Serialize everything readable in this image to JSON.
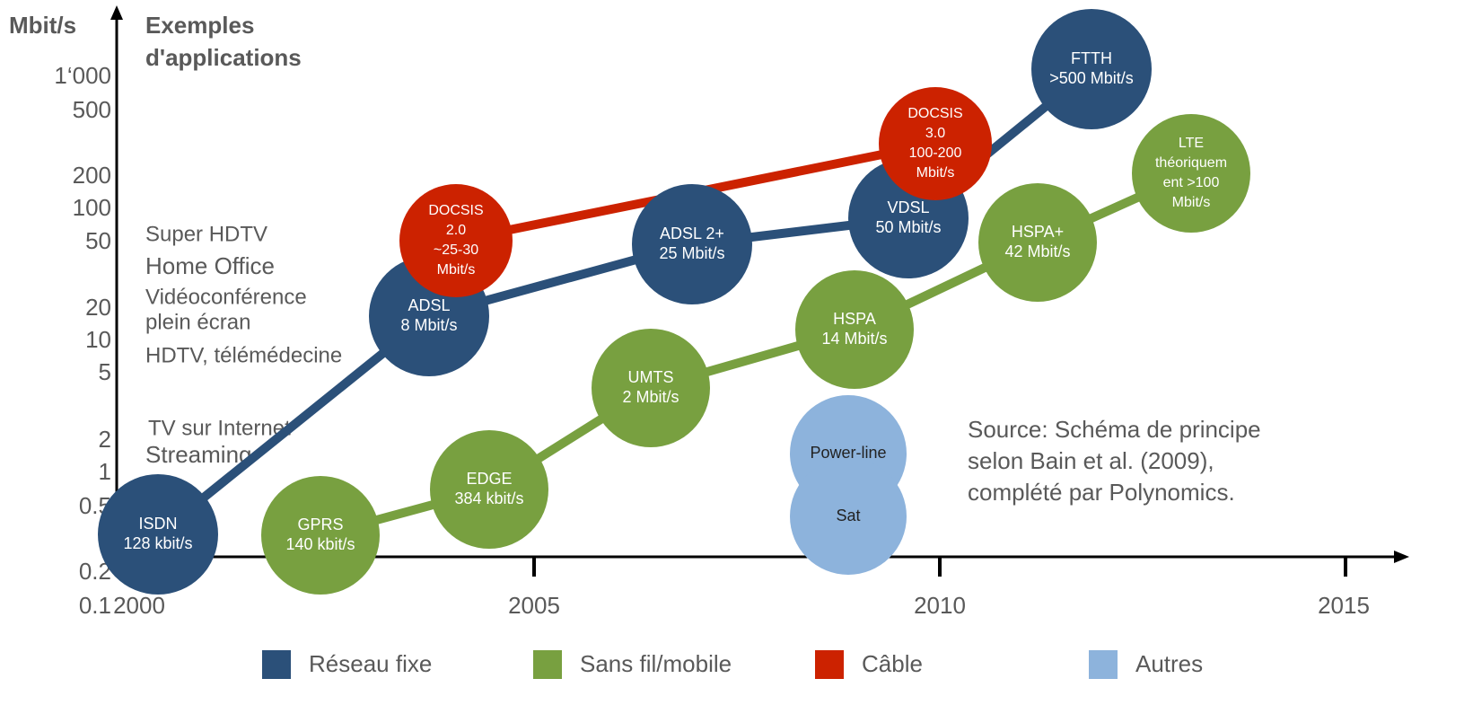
{
  "y_axis": {
    "unit": "Mbit/s",
    "labels": [
      "1‘000",
      "500",
      "200",
      "100",
      "50",
      "20",
      "10",
      "5",
      "2",
      "1",
      "0.5",
      "0.2",
      "0.1"
    ]
  },
  "x_axis": {
    "labels": [
      "2000",
      "2005",
      "2010",
      "2015"
    ]
  },
  "applications": {
    "header": [
      "Exemples",
      "d'applications"
    ],
    "items": [
      "Super HDTV",
      "Home Office",
      "Vidéoconférence",
      "plein écran",
      "HDTV, télémédecine",
      "TV sur Internet",
      "Streaming"
    ]
  },
  "groups": [
    {
      "name": "Réseau fixe",
      "color": "#2b5079",
      "nodes": [
        {
          "lines": [
            "ISDN",
            "128 kbit/s"
          ]
        },
        {
          "lines": [
            "ADSL",
            "8 Mbit/s"
          ]
        },
        {
          "lines": [
            "ADSL 2+",
            "25 Mbit/s"
          ]
        },
        {
          "lines": [
            "VDSL",
            "50 Mbit/s"
          ]
        },
        {
          "lines": [
            "FTTH",
            ">500 Mbit/s"
          ]
        }
      ]
    },
    {
      "name": "Sans fil/mobile",
      "color": "#78a040",
      "nodes": [
        {
          "lines": [
            "GPRS",
            "140 kbit/s"
          ]
        },
        {
          "lines": [
            "EDGE",
            "384 kbit/s"
          ]
        },
        {
          "lines": [
            "UMTS",
            "2 Mbit/s"
          ]
        },
        {
          "lines": [
            "HSPA",
            "14 Mbit/s"
          ]
        },
        {
          "lines": [
            "HSPA+",
            "42 Mbit/s"
          ]
        },
        {
          "lines": [
            "LTE",
            "théoriquem",
            "ent >100",
            "Mbit/s"
          ]
        }
      ]
    },
    {
      "name": "Câble",
      "color": "#cc2200",
      "nodes": [
        {
          "lines": [
            "DOCSIS",
            "2.0",
            "~25-30",
            "Mbit/s"
          ]
        },
        {
          "lines": [
            "DOCSIS",
            "3.0",
            "100-200",
            "Mbit/s"
          ]
        }
      ]
    },
    {
      "name": "Autres",
      "color": "#8db3dc",
      "nodes": [
        {
          "lines": [
            "Power-line"
          ]
        },
        {
          "lines": [
            "Sat"
          ]
        }
      ]
    }
  ],
  "source": [
    "Source: Schéma de principe",
    "selon Bain et al. (2009),",
    "complété par Polynomics."
  ]
}
